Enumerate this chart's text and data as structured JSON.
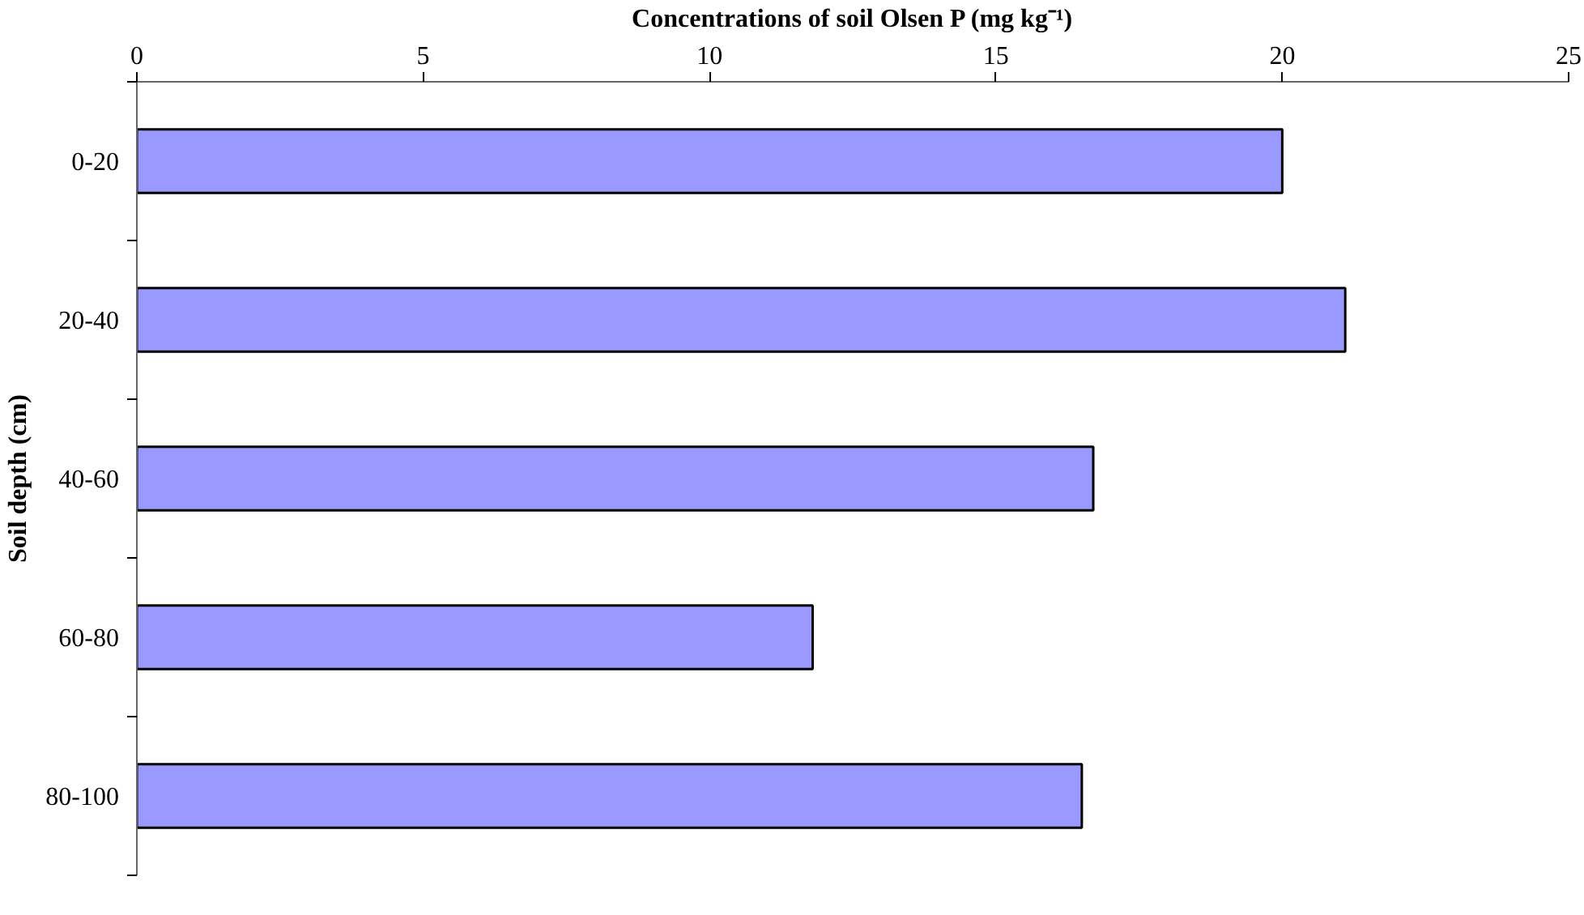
{
  "chart_data": {
    "type": "bar",
    "orientation": "horizontal",
    "xlabel": "Concentrations of soil Olsen P (mg kg⁻¹)",
    "ylabel": "Soil depth (cm)",
    "categories": [
      "0-20",
      "20-40",
      "40-60",
      "60-80",
      "80-100"
    ],
    "values": [
      20.0,
      21.1,
      16.7,
      11.8,
      16.5
    ],
    "color": "#9999ff",
    "xlim": [
      0,
      25
    ],
    "xticks": [
      0,
      5,
      10,
      15,
      20,
      25
    ],
    "grid": false
  }
}
